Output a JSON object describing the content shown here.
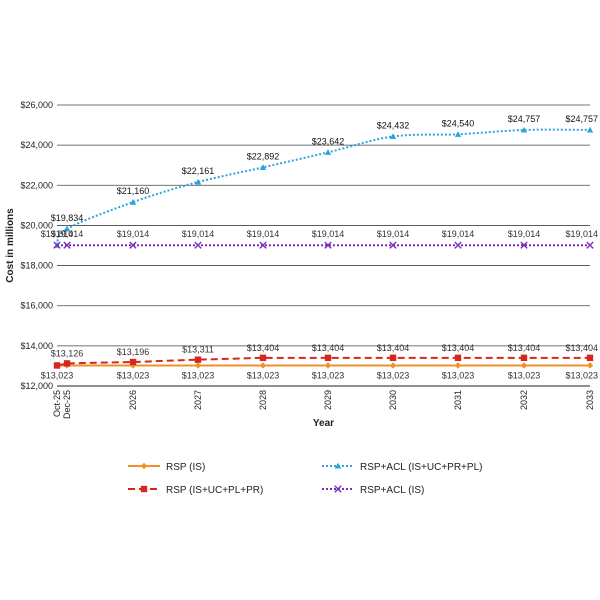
{
  "chart_data": {
    "type": "line",
    "title": "",
    "xlabel": "Year",
    "ylabel": "Cost in millions",
    "categories": [
      "Oct-25",
      "Dec-25",
      "2026",
      "2027",
      "2028",
      "2029",
      "2030",
      "2031",
      "2032",
      "2033"
    ],
    "y_ticks": [
      "$12,000",
      "$14,000",
      "$16,000",
      "$18,000",
      "$20,000",
      "$22,000",
      "$24,000",
      "$26,000"
    ],
    "ylim": [
      12000,
      26000
    ],
    "grid": true,
    "legend_position": "bottom",
    "series": [
      {
        "name": "RSP (IS)",
        "color": "#F0922B",
        "marker": "diamond",
        "dash": "solid",
        "values": [
          13023,
          13023,
          13023,
          13023,
          13023,
          13023,
          13023,
          13023,
          13023,
          13023
        ],
        "labels": [
          "$13,023",
          "",
          "$13,023",
          "$13,023",
          "$13,023",
          "$13,023",
          "$13,023",
          "$13,023",
          "$13,023",
          "$13,023"
        ]
      },
      {
        "name": "RSP (IS+UC+PL+PR)",
        "color": "#D7261E",
        "marker": "square",
        "dash": "dashed",
        "values": [
          13023,
          13126,
          13196,
          13311,
          13404,
          13404,
          13404,
          13404,
          13404,
          13404
        ],
        "labels": [
          "",
          "$13,126",
          "$13,196",
          "$13,311",
          "$13,404",
          "$13,404",
          "$13,404",
          "$13,404",
          "$13,404",
          "$13,404"
        ]
      },
      {
        "name": "RSP+ACL (IS+UC+PR+PL)",
        "color": "#2EA3DC",
        "marker": "triangle",
        "dash": "dotted",
        "values": [
          19014,
          19834,
          21160,
          22161,
          22892,
          23642,
          24432,
          24540,
          24757,
          24757
        ],
        "labels": [
          "",
          "$19,834",
          "$21,160",
          "$22,161",
          "$22,892",
          "$23,642",
          "$24,432",
          "$24,540",
          "$24,757",
          "$24,757"
        ]
      },
      {
        "name": "RSP+ACL (IS)",
        "color": "#7B2FBE",
        "marker": "x",
        "dash": "dotted",
        "values": [
          19014,
          19014,
          19014,
          19014,
          19014,
          19014,
          19014,
          19014,
          19014,
          19014
        ],
        "labels": [
          "$19,014",
          "$19,014",
          "$19,014",
          "$19,014",
          "$19,014",
          "$19,014",
          "$19,014",
          "$19,014",
          "$19,014",
          "$19,014"
        ]
      }
    ]
  }
}
